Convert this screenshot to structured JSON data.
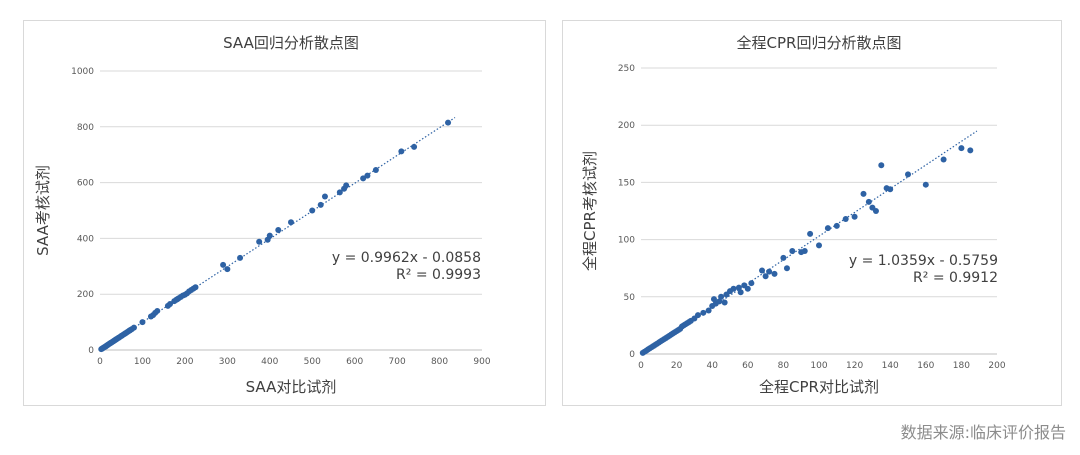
{
  "source_note": "数据来源:临床评价报告",
  "chart_data": [
    {
      "type": "scatter",
      "title": "SAA回归分析散点图",
      "xlabel": "SAA对比试剂",
      "ylabel": "SAA考核试剂",
      "xlim": [
        0,
        900
      ],
      "ylim": [
        0,
        1000
      ],
      "xticks": [
        0,
        100,
        200,
        300,
        400,
        500,
        600,
        700,
        800,
        900
      ],
      "yticks": [
        0,
        200,
        400,
        600,
        800,
        1000
      ],
      "grid": true,
      "marker_color": "#2e62a4",
      "trendline": {
        "slope": 0.9962,
        "intercept": -0.0858,
        "style": "dotted"
      },
      "equation": "y = 0.9962x - 0.0858",
      "r2_label": "R² = 0.9993",
      "x": [
        3,
        5,
        6,
        8,
        10,
        12,
        14,
        15,
        17,
        18,
        20,
        22,
        24,
        25,
        27,
        28,
        30,
        32,
        34,
        35,
        37,
        38,
        40,
        42,
        44,
        45,
        48,
        50,
        52,
        55,
        58,
        60,
        62,
        65,
        68,
        70,
        72,
        75,
        80,
        100,
        120,
        125,
        130,
        135,
        160,
        165,
        175,
        180,
        182,
        185,
        190,
        195,
        200,
        205,
        210,
        215,
        220,
        225,
        290,
        300,
        330,
        375,
        395,
        400,
        420,
        450,
        500,
        520,
        530,
        565,
        575,
        580,
        620,
        630,
        650,
        710,
        740,
        820
      ],
      "y": [
        3,
        5,
        6,
        8,
        10,
        12,
        13,
        15,
        17,
        18,
        20,
        22,
        24,
        25,
        27,
        28,
        30,
        32,
        34,
        35,
        37,
        38,
        40,
        42,
        44,
        45,
        48,
        50,
        52,
        55,
        58,
        60,
        62,
        65,
        68,
        70,
        72,
        75,
        80,
        100,
        120,
        125,
        133,
        140,
        158,
        165,
        175,
        180,
        182,
        185,
        190,
        195,
        198,
        203,
        210,
        215,
        220,
        225,
        305,
        290,
        330,
        388,
        395,
        410,
        430,
        458,
        500,
        520,
        550,
        565,
        578,
        590,
        615,
        625,
        645,
        712,
        728,
        815
      ]
    },
    {
      "type": "scatter",
      "title": "全程CPR回归分析散点图",
      "xlabel": "全程CPR对比试剂",
      "ylabel": "全程CPR考核试剂",
      "xlim": [
        0,
        200
      ],
      "ylim": [
        0,
        250
      ],
      "xticks": [
        0,
        20,
        40,
        60,
        80,
        100,
        120,
        140,
        160,
        180,
        200
      ],
      "yticks": [
        0,
        50,
        100,
        150,
        200,
        250
      ],
      "grid": true,
      "marker_color": "#2e62a4",
      "trendline": {
        "slope": 1.0359,
        "intercept": -0.5759,
        "style": "dotted"
      },
      "equation": "y = 1.0359x - 0.5759",
      "r2_label": "R² = 0.9912",
      "x": [
        1,
        2,
        3,
        4,
        5,
        6,
        7,
        8,
        9,
        10,
        11,
        12,
        13,
        14,
        15,
        16,
        17,
        18,
        19,
        20,
        21,
        22,
        23,
        24,
        25,
        26,
        27,
        28,
        30,
        32,
        35,
        38,
        40,
        41,
        42,
        44,
        45,
        47,
        48,
        50,
        52,
        55,
        56,
        58,
        60,
        62,
        68,
        70,
        72,
        75,
        80,
        82,
        85,
        90,
        92,
        95,
        100,
        105,
        110,
        115,
        120,
        125,
        128,
        130,
        132,
        135,
        138,
        140,
        150,
        160,
        170,
        180,
        185
      ],
      "y": [
        1,
        2,
        3,
        4,
        5,
        6,
        7,
        8,
        9,
        10,
        11,
        12,
        13,
        14,
        15,
        16,
        17,
        18,
        19,
        20,
        21,
        22,
        24,
        25,
        26,
        27,
        28,
        29,
        31,
        34,
        36,
        38,
        42,
        48,
        44,
        46,
        50,
        45,
        52,
        55,
        57,
        58,
        54,
        60,
        57,
        62,
        73,
        68,
        72,
        70,
        84,
        75,
        90,
        89,
        90,
        105,
        95,
        110,
        112,
        118,
        120,
        140,
        133,
        128,
        125,
        165,
        145,
        144,
        157,
        148,
        170,
        180,
        178
      ]
    }
  ]
}
